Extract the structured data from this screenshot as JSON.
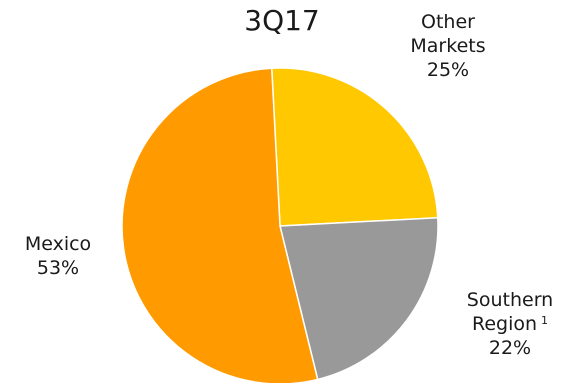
{
  "chart_data": {
    "type": "pie",
    "title": "3Q17",
    "slices": [
      {
        "label": "Other Markets",
        "label_lines": [
          "Other",
          "Markets"
        ],
        "value": 25,
        "value_label": "25%",
        "color": "#FFC800"
      },
      {
        "label": "Southern Region",
        "label_lines": [
          "Southern",
          "Region"
        ],
        "footnote": "1",
        "value": 22,
        "value_label": "22%",
        "color": "#999999"
      },
      {
        "label": "Mexico",
        "label_lines": [
          "Mexico"
        ],
        "value": 53,
        "value_label": "53%",
        "color": "#FF9A00"
      }
    ],
    "start_angle_deg": 357,
    "direction": "clockwise",
    "legend": "none",
    "grid": false
  }
}
